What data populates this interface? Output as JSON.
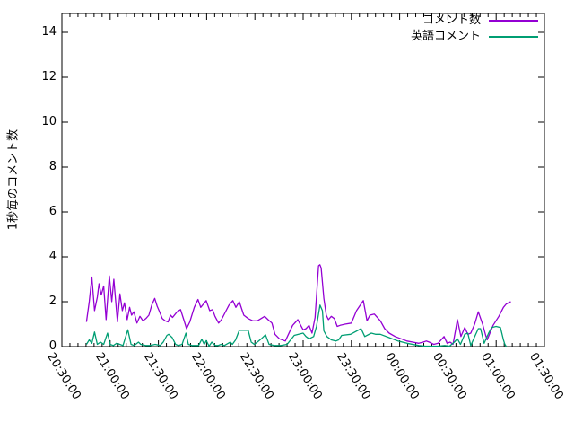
{
  "chart_data": {
    "type": "line",
    "title": "",
    "xlabel": "",
    "ylabel": "1秒毎のコメント数",
    "grid": false,
    "legend_position": "top-right-inside",
    "x_axis": {
      "unit": "time (HH:MM:SS), minutes measured from 20:30:00",
      "tick_labels": [
        "20:30:00",
        "21:00:00",
        "21:30:00",
        "22:00:00",
        "22:30:00",
        "23:00:00",
        "23:30:00",
        "00:00:00",
        "00:30:00",
        "01:00:00",
        "01:30:00"
      ],
      "tick_minutes": [
        0,
        30,
        60,
        90,
        120,
        150,
        180,
        210,
        240,
        270,
        300
      ],
      "minor_tick_every_minutes": 5,
      "range_minutes": [
        0,
        300
      ],
      "label_rotation_deg": 58
    },
    "y_axis": {
      "ticks": [
        0,
        2,
        4,
        6,
        8,
        10,
        12,
        14
      ],
      "range": [
        0,
        14.84
      ]
    },
    "series": [
      {
        "name": "コメント数",
        "color": "#9400d3",
        "points": [
          [
            15.3,
            1.1
          ],
          [
            17,
            2.0
          ],
          [
            18.6,
            3.1
          ],
          [
            20.3,
            1.6
          ],
          [
            22,
            2.2
          ],
          [
            23.1,
            2.8
          ],
          [
            24.5,
            2.3
          ],
          [
            26,
            2.7
          ],
          [
            27.5,
            1.2
          ],
          [
            29.5,
            3.15
          ],
          [
            31,
            2.0
          ],
          [
            32.3,
            3.0
          ],
          [
            34.5,
            1.1
          ],
          [
            36.1,
            2.35
          ],
          [
            37.6,
            1.6
          ],
          [
            38.9,
            1.95
          ],
          [
            40.6,
            1.2
          ],
          [
            42.1,
            1.75
          ],
          [
            43.3,
            1.4
          ],
          [
            44.8,
            1.55
          ],
          [
            46.7,
            1.05
          ],
          [
            48.5,
            1.35
          ],
          [
            50.4,
            1.15
          ],
          [
            52.2,
            1.25
          ],
          [
            54.1,
            1.4
          ],
          [
            55.9,
            1.85
          ],
          [
            57.7,
            2.15
          ],
          [
            59.2,
            1.8
          ],
          [
            60.7,
            1.55
          ],
          [
            62.4,
            1.25
          ],
          [
            64.2,
            1.15
          ],
          [
            66,
            1.1
          ],
          [
            67.5,
            1.4
          ],
          [
            68.8,
            1.3
          ],
          [
            71.6,
            1.55
          ],
          [
            73.8,
            1.65
          ],
          [
            75.8,
            1.2
          ],
          [
            77.5,
            0.8
          ],
          [
            79.5,
            1.1
          ],
          [
            82.3,
            1.75
          ],
          [
            84.6,
            2.1
          ],
          [
            86.3,
            1.75
          ],
          [
            89.7,
            2.05
          ],
          [
            91.9,
            1.6
          ],
          [
            93.7,
            1.65
          ],
          [
            95.2,
            1.35
          ],
          [
            97.4,
            1.05
          ],
          [
            99.2,
            1.2
          ],
          [
            103.9,
            1.85
          ],
          [
            106.3,
            2.05
          ],
          [
            108.2,
            1.75
          ],
          [
            110.3,
            2.0
          ],
          [
            113.1,
            1.4
          ],
          [
            115.9,
            1.25
          ],
          [
            118.7,
            1.15
          ],
          [
            121.5,
            1.15
          ],
          [
            126.1,
            1.35
          ],
          [
            128.2,
            1.2
          ],
          [
            130.6,
            1.05
          ],
          [
            132.5,
            0.55
          ],
          [
            135.2,
            0.35
          ],
          [
            138.9,
            0.25
          ],
          [
            143.5,
            0.95
          ],
          [
            146.7,
            1.2
          ],
          [
            148.5,
            0.95
          ],
          [
            150,
            0.75
          ],
          [
            151.8,
            0.8
          ],
          [
            153.7,
            0.95
          ],
          [
            155.5,
            0.6
          ],
          [
            157.4,
            1.3
          ],
          [
            159.6,
            3.6
          ],
          [
            160.4,
            3.65
          ],
          [
            161.2,
            3.5
          ],
          [
            162.9,
            2.15
          ],
          [
            164.4,
            1.4
          ],
          [
            165.7,
            1.2
          ],
          [
            167.5,
            1.35
          ],
          [
            169.4,
            1.25
          ],
          [
            171.2,
            0.9
          ],
          [
            173,
            0.95
          ],
          [
            176,
            1.0
          ],
          [
            180,
            1.05
          ],
          [
            183.2,
            1.6
          ],
          [
            187.4,
            2.05
          ],
          [
            189.7,
            1.15
          ],
          [
            191.5,
            1.4
          ],
          [
            194.3,
            1.45
          ],
          [
            198,
            1.15
          ],
          [
            200.7,
            0.8
          ],
          [
            203.5,
            0.6
          ],
          [
            207.2,
            0.45
          ],
          [
            210.9,
            0.35
          ],
          [
            214.6,
            0.25
          ],
          [
            218.2,
            0.2
          ],
          [
            221.9,
            0.15
          ],
          [
            224.7,
            0.2
          ],
          [
            226.5,
            0.25
          ],
          [
            228.4,
            0.2
          ],
          [
            231.2,
            0.1
          ],
          [
            233.9,
            0.15
          ],
          [
            237.6,
            0.45
          ],
          [
            239.5,
            0.15
          ],
          [
            241.4,
            0.2
          ],
          [
            243.2,
            0.1
          ],
          [
            245.9,
            1.2
          ],
          [
            248.1,
            0.45
          ],
          [
            250.5,
            0.85
          ],
          [
            252.4,
            0.55
          ],
          [
            254.2,
            0.6
          ],
          [
            256.6,
            1.0
          ],
          [
            258.9,
            1.55
          ],
          [
            261.6,
            1.0
          ],
          [
            263.5,
            0.5
          ],
          [
            264.4,
            0.3
          ],
          [
            268.1,
            0.95
          ],
          [
            271.7,
            1.35
          ],
          [
            274.5,
            1.75
          ],
          [
            276.3,
            1.9
          ],
          [
            279.1,
            2.0
          ]
        ]
      },
      {
        "name": "英語コメント",
        "color": "#009e73",
        "points": [
          [
            15.3,
            0.1
          ],
          [
            17,
            0.3
          ],
          [
            18.6,
            0.15
          ],
          [
            20.3,
            0.65
          ],
          [
            22,
            0.1
          ],
          [
            24,
            0.2
          ],
          [
            26,
            0.1
          ],
          [
            28.4,
            0.6
          ],
          [
            30,
            0.1
          ],
          [
            32,
            0.05
          ],
          [
            34,
            0.15
          ],
          [
            36,
            0.1
          ],
          [
            38,
            0.05
          ],
          [
            41,
            0.75
          ],
          [
            43,
            0.1
          ],
          [
            45,
            0.05
          ],
          [
            47.6,
            0.2
          ],
          [
            49,
            0.1
          ],
          [
            52,
            0.05
          ],
          [
            55,
            0.05
          ],
          [
            58,
            0.1
          ],
          [
            61,
            0.05
          ],
          [
            63,
            0.2
          ],
          [
            65.3,
            0.5
          ],
          [
            66.4,
            0.55
          ],
          [
            68.6,
            0.4
          ],
          [
            70.7,
            0.1
          ],
          [
            72.5,
            0.05
          ],
          [
            74.7,
            0.1
          ],
          [
            77.1,
            0.6
          ],
          [
            78.6,
            0.1
          ],
          [
            80.8,
            0.05
          ],
          [
            85,
            0.05
          ],
          [
            87,
            0.33
          ],
          [
            88.5,
            0.1
          ],
          [
            89.8,
            0.27
          ],
          [
            91.5,
            0.02
          ],
          [
            93.2,
            0.2
          ],
          [
            95.4,
            0.05
          ],
          [
            97,
            0.05
          ],
          [
            99,
            0.1
          ],
          [
            101,
            0.05
          ],
          [
            104.7,
            0.2
          ],
          [
            106,
            0.1
          ],
          [
            108,
            0.3
          ],
          [
            110.3,
            0.73
          ],
          [
            112.1,
            0.73
          ],
          [
            115.8,
            0.73
          ],
          [
            117.7,
            0.2
          ],
          [
            119.6,
            0.1
          ],
          [
            121.5,
            0.2
          ],
          [
            124,
            0.35
          ],
          [
            126.6,
            0.53
          ],
          [
            128.8,
            0.1
          ],
          [
            132,
            0.05
          ],
          [
            136,
            0.05
          ],
          [
            140,
            0.1
          ],
          [
            144.5,
            0.5
          ],
          [
            147.2,
            0.55
          ],
          [
            150,
            0.6
          ],
          [
            151.8,
            0.45
          ],
          [
            153.7,
            0.35
          ],
          [
            156.5,
            0.45
          ],
          [
            158.3,
            0.9
          ],
          [
            160.5,
            1.85
          ],
          [
            162,
            1.6
          ],
          [
            162.9,
            0.7
          ],
          [
            164.8,
            0.45
          ],
          [
            167.5,
            0.3
          ],
          [
            170.3,
            0.25
          ],
          [
            172.1,
            0.3
          ],
          [
            174,
            0.5
          ],
          [
            179.5,
            0.55
          ],
          [
            186,
            0.8
          ],
          [
            188.3,
            0.45
          ],
          [
            192.4,
            0.6
          ],
          [
            195,
            0.55
          ],
          [
            198,
            0.55
          ],
          [
            203.5,
            0.4
          ],
          [
            209,
            0.25
          ],
          [
            214.6,
            0.15
          ],
          [
            221.9,
            0.05
          ],
          [
            226,
            0.02
          ],
          [
            230,
            0.02
          ],
          [
            234,
            0.02
          ],
          [
            238,
            0.05
          ],
          [
            241,
            0.02
          ],
          [
            244,
            0.2
          ],
          [
            245.9,
            0.35
          ],
          [
            247.8,
            0.1
          ],
          [
            250.5,
            0.55
          ],
          [
            252.4,
            0.6
          ],
          [
            254.2,
            0.05
          ],
          [
            257,
            0.5
          ],
          [
            258.9,
            0.8
          ],
          [
            260.3,
            0.8
          ],
          [
            262.5,
            0.15
          ],
          [
            265.3,
            0.6
          ],
          [
            267.2,
            0.85
          ],
          [
            270,
            0.9
          ],
          [
            272.7,
            0.85
          ],
          [
            274.5,
            0.3
          ],
          [
            275.4,
            0.1
          ],
          [
            276.3,
            0
          ]
        ]
      }
    ]
  },
  "colors": {
    "border": "#000000",
    "text": "#000000",
    "background": "#ffffff",
    "series_comments": "#9400d3",
    "series_english": "#009e73"
  }
}
